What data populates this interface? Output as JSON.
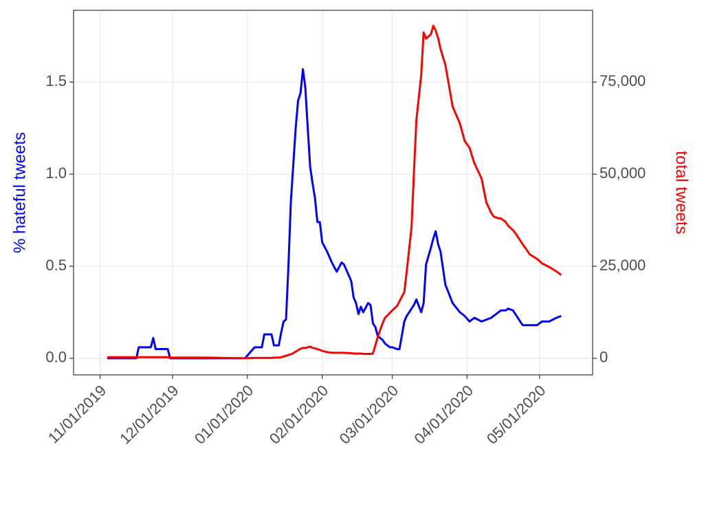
{
  "chart_data": {
    "type": "line",
    "y_label": "% hateful tweets",
    "y2_label": "total tweets",
    "x": [
      "11/04/2019",
      "11/16/2019",
      "11/17/2019",
      "11/22/2019",
      "11/23/2019",
      "11/24/2019",
      "11/29/2019",
      "11/30/2019",
      "12/15/2019",
      "12/31/2019",
      "01/04/2020",
      "01/07/2020",
      "01/08/2020",
      "01/11/2020",
      "01/12/2020",
      "01/14/2020",
      "01/15/2020",
      "01/16/2020",
      "01/17/2020",
      "01/18/2020",
      "01/19/2020",
      "01/20/2020",
      "01/21/2020",
      "01/22/2020",
      "01/23/2020",
      "01/24/2020",
      "01/25/2020",
      "01/26/2020",
      "01/27/2020",
      "01/28/2020",
      "01/29/2020",
      "01/30/2020",
      "01/31/2020",
      "02/01/2020",
      "02/03/2020",
      "02/05/2020",
      "02/07/2020",
      "02/09/2020",
      "02/10/2020",
      "02/12/2020",
      "02/13/2020",
      "02/14/2020",
      "02/15/2020",
      "02/16/2020",
      "02/17/2020",
      "02/18/2020",
      "02/20/2020",
      "02/21/2020",
      "02/22/2020",
      "02/23/2020",
      "02/24/2020",
      "02/26/2020",
      "02/27/2020",
      "02/29/2020",
      "03/01/2020",
      "03/03/2020",
      "03/04/2020",
      "03/06/2020",
      "03/07/2020",
      "03/09/2020",
      "03/10/2020",
      "03/11/2020",
      "03/13/2020",
      "03/14/2020",
      "03/15/2020",
      "03/17/2020",
      "03/18/2020",
      "03/19/2020",
      "03/20/2020",
      "03/21/2020",
      "03/23/2020",
      "03/26/2020",
      "03/29/2020",
      "03/31/2020",
      "04/02/2020",
      "04/04/2020",
      "04/07/2020",
      "04/09/2020",
      "04/11/2020",
      "04/12/2020",
      "04/14/2020",
      "04/15/2020",
      "04/17/2020",
      "04/18/2020",
      "04/20/2020",
      "04/21/2020",
      "04/24/2020",
      "04/27/2020",
      "04/30/2020",
      "05/02/2020",
      "05/05/2020",
      "05/08/2020",
      "05/10/2020"
    ],
    "series": [
      {
        "color": "#0000ff",
        "values": [
          0,
          0,
          0.06,
          0.06,
          0.11,
          0.05,
          0.05,
          0,
          0,
          0,
          0.06,
          0.06,
          0.13,
          0.13,
          0.07,
          0.07,
          0.14,
          0.2,
          0.21,
          0.5,
          0.85,
          1.05,
          1.25,
          1.4,
          1.44,
          1.57,
          1.47,
          1.25,
          1.04,
          0.95,
          0.87,
          0.74,
          0.74,
          0.63,
          0.58,
          0.52,
          0.47,
          0.52,
          0.51,
          0.45,
          0.42,
          0.33,
          0.3,
          0.24,
          0.28,
          0.25,
          0.3,
          0.29,
          0.19,
          0.17,
          0.12,
          0.1,
          0.08,
          0.06,
          0.06,
          0.05,
          0.05,
          0.2,
          0.23,
          0.27,
          0.29,
          0.32,
          0.25,
          0.3,
          0.51,
          0.6,
          0.65,
          0.69,
          0.62,
          0.58,
          0.4,
          0.3,
          0.25,
          0.23,
          0.2,
          0.22,
          0.2,
          0.21,
          0.22,
          0.23,
          0.25,
          0.26,
          0.26,
          0.27,
          0.26,
          0.24,
          0.18,
          0.18,
          0.18,
          0.2,
          0.2,
          0.22,
          0.23
        ]
      },
      {
        "color": "#ff0000",
        "axis": "y2",
        "values": [
          300,
          300,
          300,
          300,
          300,
          300,
          300,
          200,
          200,
          0,
          100,
          100,
          100,
          100,
          200,
          200,
          300,
          500,
          700,
          900,
          1100,
          1400,
          1800,
          2200,
          2600,
          2800,
          2800,
          3000,
          3200,
          2800,
          2700,
          2500,
          2300,
          2000,
          1700,
          1500,
          1500,
          1500,
          1500,
          1400,
          1400,
          1300,
          1300,
          1300,
          1300,
          1200,
          1200,
          1200,
          1300,
          3500,
          5800,
          9500,
          11000,
          12300,
          13000,
          14200,
          15500,
          18000,
          23600,
          35700,
          50700,
          64700,
          76900,
          88500,
          86800,
          88000,
          90300,
          89000,
          87000,
          84000,
          79700,
          68400,
          63800,
          59000,
          57200,
          53000,
          48800,
          42300,
          39500,
          38500,
          38000,
          38000,
          37000,
          36000,
          34800,
          34000,
          31000,
          28200,
          27000,
          25800,
          24800,
          23600,
          22600
        ]
      }
    ],
    "xlim": [
      "10/21/2019",
      "05/23/2020"
    ],
    "xticks": [
      "11/01/2019",
      "12/01/2019",
      "01/01/2020",
      "02/01/2020",
      "03/01/2020",
      "04/01/2020",
      "05/01/2020"
    ],
    "ylim": [
      -0.09,
      1.89
    ],
    "yticks": [
      {
        "value": 0,
        "label": "0.0"
      },
      {
        "value": 0.5,
        "label": "0.5"
      },
      {
        "value": 1,
        "label": "1.0"
      },
      {
        "value": 1.5,
        "label": "1.5"
      }
    ],
    "y2lim": [
      -4500,
      94500
    ],
    "y2ticks": [
      0,
      {
        "value": 25000,
        "label": "25,000"
      },
      {
        "value": 50000,
        "label": "50,000"
      },
      {
        "value": 75000,
        "label": "75,000"
      }
    ],
    "grid": true
  }
}
